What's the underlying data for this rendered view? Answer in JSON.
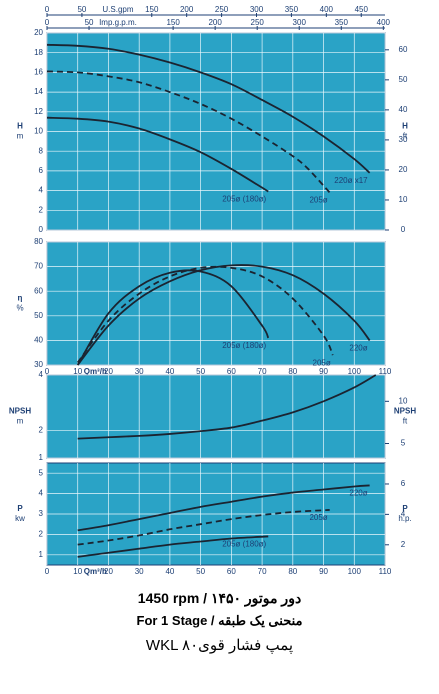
{
  "chart_data": [
    {
      "type": "line",
      "ylabel": "H",
      "yunit": "m",
      "y2label": "H",
      "y2unit": "ft",
      "xlim": [
        0,
        110
      ],
      "xticks": [
        0,
        10,
        20,
        30,
        40,
        50,
        60,
        70,
        80,
        90,
        100,
        110
      ],
      "xtick_labels": false,
      "ylim": [
        0,
        20
      ],
      "yticks": [
        0,
        2,
        4,
        6,
        8,
        10,
        12,
        14,
        16,
        18,
        20
      ],
      "y2lim": [
        0,
        65.6
      ],
      "y2ticks": [
        0,
        10,
        20,
        30,
        40,
        50,
        60
      ],
      "x2label": "U.S.gpm",
      "x2lim": [
        0,
        484
      ],
      "x2ticks": [
        0,
        50,
        150,
        200,
        250,
        300,
        350,
        400,
        450
      ],
      "x3label": "Imp.g.p.m.",
      "x3lim": [
        0,
        402
      ],
      "x3ticks": [
        0,
        50,
        150,
        200,
        250,
        300,
        350,
        400
      ],
      "grid": true,
      "color": "#1b2431",
      "series": [
        {
          "name": "220ø x17",
          "style": "solid",
          "x": [
            0,
            10,
            20,
            30,
            40,
            50,
            60,
            70,
            80,
            90,
            100,
            105
          ],
          "values": [
            18.8,
            18.7,
            18.4,
            17.8,
            17,
            16,
            14.8,
            13.2,
            11.5,
            9.5,
            7.2,
            5.8
          ]
        },
        {
          "name": "205ø",
          "style": "dashed",
          "x": [
            0,
            10,
            20,
            30,
            40,
            50,
            60,
            70,
            80,
            85,
            92
          ],
          "values": [
            16.1,
            16,
            15.6,
            15,
            14,
            12.8,
            11.3,
            9.5,
            7.5,
            6.2,
            3.8
          ]
        },
        {
          "name": "205ø (180ø)",
          "style": "solid",
          "x": [
            0,
            10,
            20,
            30,
            40,
            50,
            60,
            70,
            72
          ],
          "values": [
            11.4,
            11.3,
            11,
            10.3,
            9.2,
            7.9,
            6.2,
            4.3,
            3.9
          ]
        }
      ]
    },
    {
      "type": "line",
      "ylabel": "η",
      "yunit": "%",
      "xlabel": "Qm³/h",
      "xlim": [
        0,
        110
      ],
      "xticks": [
        0,
        10,
        20,
        30,
        40,
        50,
        60,
        70,
        80,
        90,
        100,
        110
      ],
      "xtick_labels": true,
      "ylim": [
        30,
        80
      ],
      "yticks": [
        30,
        40,
        50,
        60,
        70,
        80
      ],
      "grid": true,
      "color": "#1b2431",
      "series": [
        {
          "name": "220ø",
          "style": "solid",
          "x": [
            10,
            20,
            30,
            40,
            50,
            60,
            70,
            80,
            90,
            100,
            105
          ],
          "values": [
            30,
            46,
            57,
            64,
            68.5,
            70.5,
            70,
            66.5,
            59,
            48,
            40
          ]
        },
        {
          "name": "205ø",
          "style": "dashed",
          "x": [
            10,
            20,
            30,
            40,
            50,
            60,
            70,
            80,
            90,
            93
          ],
          "values": [
            31,
            48,
            59,
            66,
            69.5,
            69.5,
            66,
            57,
            42,
            34
          ]
        },
        {
          "name": "205ø (180ø)",
          "style": "solid",
          "x": [
            10,
            20,
            30,
            40,
            50,
            60,
            70,
            72
          ],
          "values": [
            30,
            51,
            62,
            67.5,
            68,
            62,
            46,
            41
          ]
        }
      ]
    },
    {
      "type": "line",
      "ylabel": "NPSH",
      "yunit": "m",
      "y2label": "NPSH",
      "y2unit": "ft",
      "xlim": [
        0,
        110
      ],
      "xticks": [
        0,
        10,
        20,
        30,
        40,
        50,
        60,
        70,
        80,
        90,
        100,
        110
      ],
      "xtick_labels": false,
      "ylim": [
        1,
        4
      ],
      "yticks": [
        1,
        2,
        4
      ],
      "y2lim": [
        3.28,
        13.12
      ],
      "y2ticks": [
        5,
        10
      ],
      "grid": true,
      "color": "#1b2431",
      "series": [
        {
          "style": "solid",
          "x": [
            10,
            20,
            30,
            40,
            50,
            60,
            70,
            80,
            90,
            100,
            107
          ],
          "values": [
            1.7,
            1.75,
            1.8,
            1.87,
            1.97,
            2.1,
            2.35,
            2.65,
            3.05,
            3.55,
            4
          ]
        }
      ]
    },
    {
      "type": "line",
      "ylabel": "P",
      "yunit": "kw",
      "y2label": "P",
      "y2unit": "h.p.",
      "xlabel": "Qm³/h",
      "xlim": [
        0,
        110
      ],
      "xticks": [
        0,
        10,
        20,
        30,
        40,
        50,
        60,
        70,
        80,
        90,
        100,
        110
      ],
      "xtick_labels": true,
      "ylim": [
        0.5,
        5.5
      ],
      "yticks": [
        1,
        2,
        3,
        4,
        5
      ],
      "y2lim": [
        0.67,
        7.38
      ],
      "y2ticks": [
        2,
        4,
        6
      ],
      "grid": true,
      "color": "#1b2431",
      "series": [
        {
          "name": "220ø",
          "style": "solid",
          "x": [
            10,
            20,
            30,
            40,
            50,
            60,
            70,
            80,
            90,
            100,
            105
          ],
          "values": [
            2.2,
            2.45,
            2.75,
            3.05,
            3.35,
            3.6,
            3.85,
            4.05,
            4.2,
            4.35,
            4.4
          ]
        },
        {
          "name": "205ø",
          "style": "dashed",
          "x": [
            10,
            20,
            30,
            40,
            50,
            60,
            70,
            80,
            92
          ],
          "values": [
            1.5,
            1.7,
            1.95,
            2.25,
            2.5,
            2.75,
            2.95,
            3.1,
            3.2
          ]
        },
        {
          "name": "205ø (180ø)",
          "style": "solid",
          "x": [
            10,
            20,
            30,
            40,
            50,
            60,
            72
          ],
          "values": [
            0.9,
            1.1,
            1.3,
            1.5,
            1.65,
            1.8,
            1.9
          ]
        }
      ]
    }
  ],
  "footer": {
    "lines": [
      "1450 rpm / ۱۴۵۰ دور موتور",
      "For 1 Stage / منحنی یک طبقه",
      "WKL پمپ فشار قوی۸۰"
    ]
  }
}
